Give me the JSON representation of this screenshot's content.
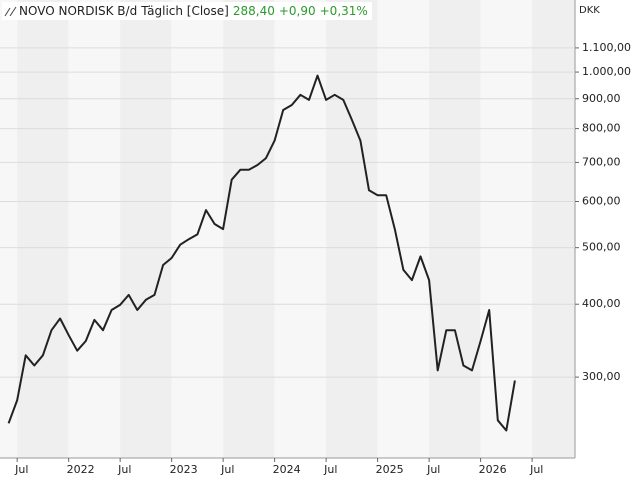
{
  "chart_data": {
    "type": "line",
    "title": "NOVO NORDISK B/d",
    "subtitle": "Täglich [Close]",
    "annotations": [
      "288,40",
      "+0,90",
      "+0,31%"
    ],
    "ylabel": "DKK",
    "color": "#222222",
    "log_scale": true,
    "grid": true,
    "x": [
      "2021-06",
      "2021-07",
      "2021-08",
      "2021-09",
      "2021-10",
      "2021-11",
      "2021-12",
      "2022-01",
      "2022-02",
      "2022-03",
      "2022-04",
      "2022-05",
      "2022-06",
      "2022-07",
      "2022-08",
      "2022-09",
      "2022-10",
      "2022-11",
      "2022-12",
      "2023-01",
      "2023-02",
      "2023-03",
      "2023-04",
      "2023-05",
      "2023-06",
      "2023-07",
      "2023-08",
      "2023-09",
      "2023-10",
      "2023-11",
      "2023-12",
      "2024-01",
      "2024-02",
      "2024-03",
      "2024-04",
      "2024-05",
      "2024-06",
      "2024-07",
      "2024-08",
      "2024-09",
      "2024-10",
      "2024-11",
      "2024-12",
      "2025-01",
      "2025-02",
      "2025-03",
      "2025-04",
      "2025-05",
      "2025-06",
      "2025-07",
      "2025-08",
      "2025-09",
      "2025-10",
      "2025-11",
      "2025-12",
      "2026-01",
      "2026-02",
      "2026-03",
      "2026-04",
      "2026-05"
    ],
    "values": [
      250,
      274,
      327,
      314,
      327,
      361,
      378,
      354,
      333,
      346,
      376,
      361,
      391,
      399,
      415,
      391,
      407,
      415,
      467,
      480,
      506,
      517,
      527,
      580,
      549,
      538,
      654,
      680,
      680,
      693,
      712,
      763,
      861,
      878,
      914,
      896,
      986,
      896,
      914,
      896,
      828,
      763,
      627,
      615,
      615,
      538,
      458,
      440,
      483,
      440,
      308,
      361,
      361,
      314,
      308,
      346,
      391,
      253,
      243,
      296
    ],
    "xlim": [
      "2021-05",
      "2026-12"
    ],
    "xticks": [
      {
        "value": "2021-07",
        "label": "Jul"
      },
      {
        "value": "2022-01",
        "label": "2022"
      },
      {
        "value": "2022-07",
        "label": "Jul"
      },
      {
        "value": "2023-01",
        "label": "2023"
      },
      {
        "value": "2023-07",
        "label": "Jul"
      },
      {
        "value": "2024-01",
        "label": "2024"
      },
      {
        "value": "2024-07",
        "label": "Jul"
      },
      {
        "value": "2025-01",
        "label": "2025"
      },
      {
        "value": "2025-07",
        "label": "Jul"
      },
      {
        "value": "2026-01",
        "label": "2026"
      },
      {
        "value": "2026-07",
        "label": "Jul"
      }
    ],
    "ylim": [
      218,
      1329
    ],
    "yticks": [
      {
        "value": 300,
        "label": "300,00"
      },
      {
        "value": 400,
        "label": "400,00"
      },
      {
        "value": 500,
        "label": "500,00"
      },
      {
        "value": 600,
        "label": "600,00"
      },
      {
        "value": 700,
        "label": "700,00"
      },
      {
        "value": 800,
        "label": "800,00"
      },
      {
        "value": 900,
        "label": "900,00"
      },
      {
        "value": 1000,
        "label": "1.000,00"
      },
      {
        "value": 1100,
        "label": "1.100,00"
      }
    ]
  }
}
